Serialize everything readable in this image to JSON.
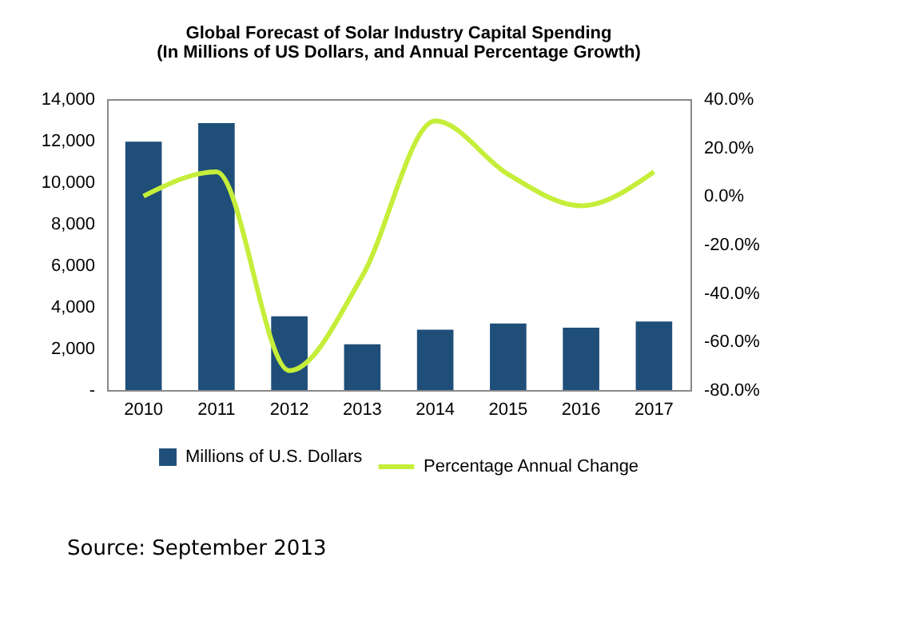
{
  "chart_data": {
    "type": "bar",
    "title": "Global Forecast of Solar Industry Capital Spending",
    "subtitle": "(In Millions of US Dollars, and Annual Percentage Growth)",
    "categories": [
      "2010",
      "2011",
      "2012",
      "2013",
      "2014",
      "2015",
      "2016",
      "2017"
    ],
    "series": [
      {
        "name": "Millions of U.S. Dollars",
        "color": "#1f4e79",
        "values": [
          11950,
          12850,
          3550,
          2200,
          2900,
          3200,
          3000,
          3300
        ]
      },
      {
        "name": "Percentage Annual Change",
        "type": "line",
        "axis": "y2",
        "color": "#c5ee3a",
        "values": [
          0,
          10,
          -72,
          -33,
          31,
          9,
          -4,
          10
        ]
      }
    ],
    "ylim": [
      0,
      14000
    ],
    "yticks": [
      {
        "value": 0,
        "label": "-"
      },
      {
        "value": 2000,
        "label": "2,000"
      },
      {
        "value": 4000,
        "label": "4,000"
      },
      {
        "value": 6000,
        "label": "6,000"
      },
      {
        "value": 8000,
        "label": "8,000"
      },
      {
        "value": 10000,
        "label": "10,000"
      },
      {
        "value": 12000,
        "label": "12,000"
      },
      {
        "value": 14000,
        "label": "14,000"
      }
    ],
    "y2lim": [
      -80,
      40
    ],
    "y2ticks": [
      {
        "value": -80,
        "label": "-80.0%"
      },
      {
        "value": -60,
        "label": "-60.0%"
      },
      {
        "value": -40,
        "label": "-40.0%"
      },
      {
        "value": -20,
        "label": "-20.0%"
      },
      {
        "value": 0,
        "label": "0.0%"
      },
      {
        "value": 20,
        "label": "20.0%"
      },
      {
        "value": 40,
        "label": "40.0%"
      }
    ],
    "legend": "bottom",
    "grid": false,
    "marker": "none",
    "annotations": [
      "Source: September 2013"
    ]
  }
}
